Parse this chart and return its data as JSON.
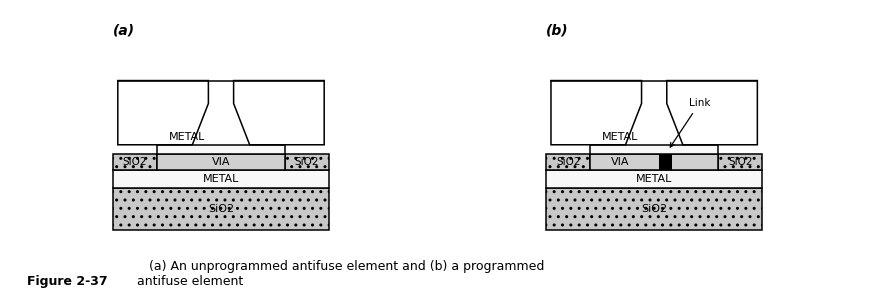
{
  "bg_color": "#ffffff",
  "sio2_face": "#c8c8c8",
  "via_face": "#d0d0d0",
  "metal_face": "#f8f8f8",
  "outline_color": "#000000",
  "label_a": "(a)",
  "label_b": "(b)",
  "caption_bold": "Figure 2-37",
  "caption_rest": "   (a) An unprogrammed antifuse element and (b) a programmed\nantifuse element",
  "font_label": 10,
  "font_layer": 8,
  "font_caption": 9,
  "lw": 1.1
}
